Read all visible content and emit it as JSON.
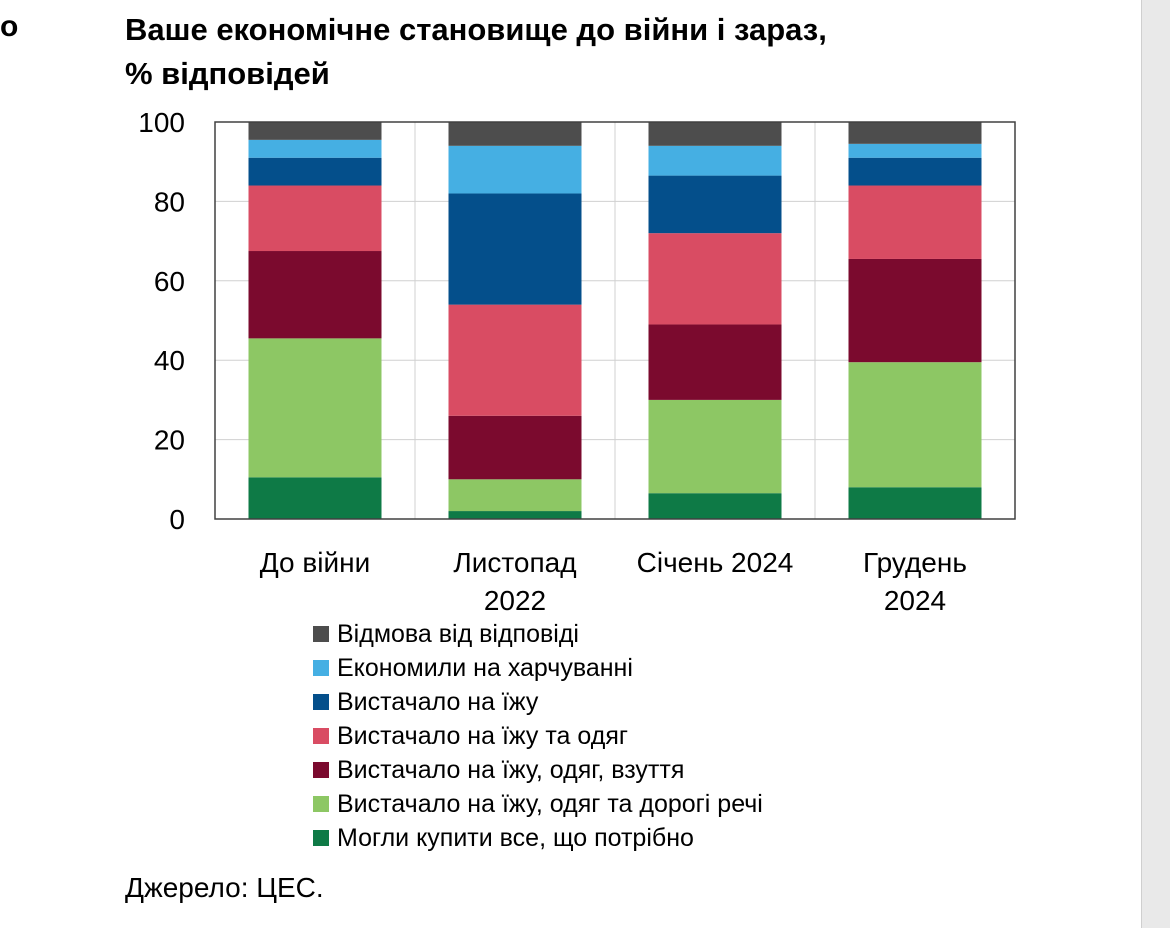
{
  "page": {
    "edge_text": "о",
    "source": "Джерело: ЦЕС."
  },
  "chart_data": {
    "type": "bar",
    "stacked": true,
    "title": "Ваше економічне становище до війни і зараз,",
    "subtitle": "% відповідей",
    "xlabel": "",
    "ylabel": "",
    "ylim": [
      0,
      100
    ],
    "yticks": [
      0,
      20,
      40,
      60,
      80,
      100
    ],
    "grid": true,
    "legend_position": "bottom",
    "categories": [
      [
        "До війни"
      ],
      [
        "Листопад",
        "2022"
      ],
      [
        "Січень 2024"
      ],
      [
        "Грудень",
        "2024"
      ]
    ],
    "series": [
      {
        "name": "Могли купити все, що потрібно",
        "color": "#0e7a46",
        "values": [
          10.5,
          2.0,
          6.5,
          8.0
        ]
      },
      {
        "name": "Вистачало на їжу, одяг та дорогі речі",
        "color": "#8dc764",
        "values": [
          35.0,
          8.0,
          23.5,
          31.5
        ]
      },
      {
        "name": "Вистачало на їжу, одяг, взуття",
        "color": "#7b0a2e",
        "values": [
          22.0,
          16.0,
          19.0,
          26.0
        ]
      },
      {
        "name": "Вистачало на їжу та одяг",
        "color": "#d94c63",
        "values": [
          16.5,
          28.0,
          23.0,
          18.5
        ]
      },
      {
        "name": "Вистачало на їжу",
        "color": "#044f8b",
        "values": [
          7.0,
          28.0,
          14.5,
          7.0
        ]
      },
      {
        "name": "Економили на харчуванні",
        "color": "#45afe3",
        "values": [
          4.5,
          12.0,
          7.5,
          3.5
        ]
      },
      {
        "name": "Відмова від відповіді",
        "color": "#4d4d4d",
        "values": [
          4.5,
          6.0,
          6.0,
          5.5
        ]
      }
    ]
  }
}
